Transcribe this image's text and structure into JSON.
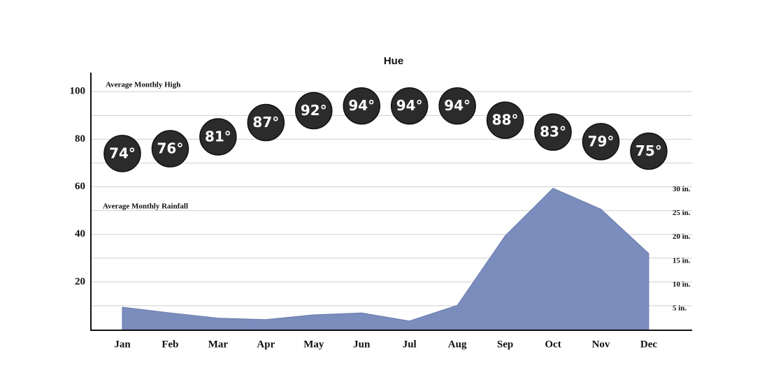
{
  "chart_data": {
    "type": "combo",
    "title": "Hue",
    "categories": [
      "Jan",
      "Feb",
      "Mar",
      "Apr",
      "May",
      "Jun",
      "Jul",
      "Aug",
      "Sep",
      "Oct",
      "Nov",
      "Dec"
    ],
    "series": [
      {
        "name": "Average Monthly High",
        "color": "#2b2b2b",
        "marker": "bubble",
        "values": [
          74,
          76,
          81,
          87,
          92,
          94,
          94,
          94,
          88,
          83,
          79,
          75
        ],
        "value_labels": [
          "74°",
          "76°",
          "81°",
          "87°",
          "92°",
          "94°",
          "94°",
          "94°",
          "88°",
          "83°",
          "79°",
          "75°"
        ]
      },
      {
        "name": "Average Monthly Rainfall",
        "color": "#7b8dbd",
        "marker": "area",
        "axis": "y2",
        "values": [
          4.7,
          3.5,
          2.4,
          2.1,
          3.1,
          3.5,
          1.8,
          5.1,
          19.7,
          29.7,
          25.3,
          16
        ]
      }
    ],
    "ylim": [
      0,
      108
    ],
    "yticks": [
      20,
      40,
      60,
      80,
      100
    ],
    "y_minor_ticks": [
      10,
      30,
      50,
      70,
      90
    ],
    "y2lim": [
      0,
      54
    ],
    "y2ticks": [
      {
        "value": 5,
        "label": "5 in."
      },
      {
        "value": 10,
        "label": "10 in."
      },
      {
        "value": 15,
        "label": "15 in."
      },
      {
        "value": 20,
        "label": "20 in."
      },
      {
        "value": 25,
        "label": "25 in."
      },
      {
        "value": 30,
        "label": "30 in."
      }
    ],
    "grid": true
  }
}
